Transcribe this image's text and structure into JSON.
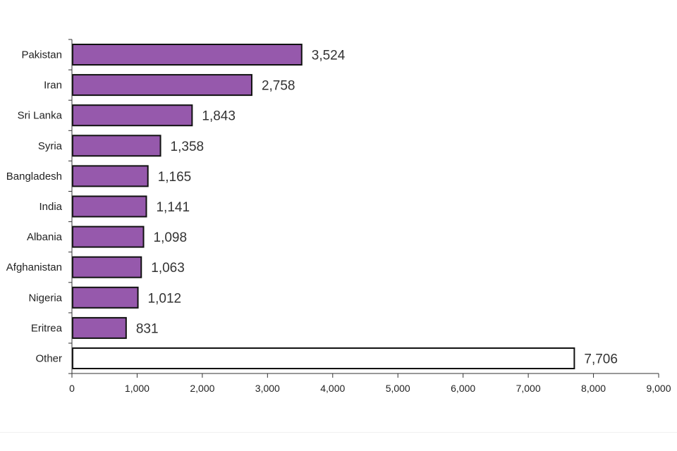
{
  "chart_data": {
    "type": "bar",
    "orientation": "horizontal",
    "title": "",
    "xlabel": "",
    "ylabel": "",
    "categories": [
      "Pakistan",
      "Iran",
      "Sri Lanka",
      "Syria",
      "Bangladesh",
      "India",
      "Albania",
      "Afghanistan",
      "Nigeria",
      "Eritrea",
      "Other"
    ],
    "values": [
      3524,
      2758,
      1843,
      1358,
      1165,
      1141,
      1098,
      1063,
      1012,
      831,
      7706
    ],
    "value_labels": [
      "3,524",
      "2,758",
      "1,843",
      "1,358",
      "1,165",
      "1,141",
      "1,098",
      "1,063",
      "1,012",
      "831",
      "7,706"
    ],
    "xlim": [
      0,
      9000
    ],
    "xticks": [
      0,
      1000,
      2000,
      3000,
      4000,
      5000,
      6000,
      7000,
      8000,
      9000
    ],
    "xtick_labels": [
      "0",
      "1,000",
      "2,000",
      "3,000",
      "4,000",
      "5,000",
      "6,000",
      "7,000",
      "8,000",
      "9,000"
    ],
    "grid": false,
    "legend": "none",
    "colors": {
      "bar_fill": "#9659AC",
      "bar_stroke": "#111111",
      "other_fill": "#ffffff",
      "axis": "#333333"
    }
  }
}
